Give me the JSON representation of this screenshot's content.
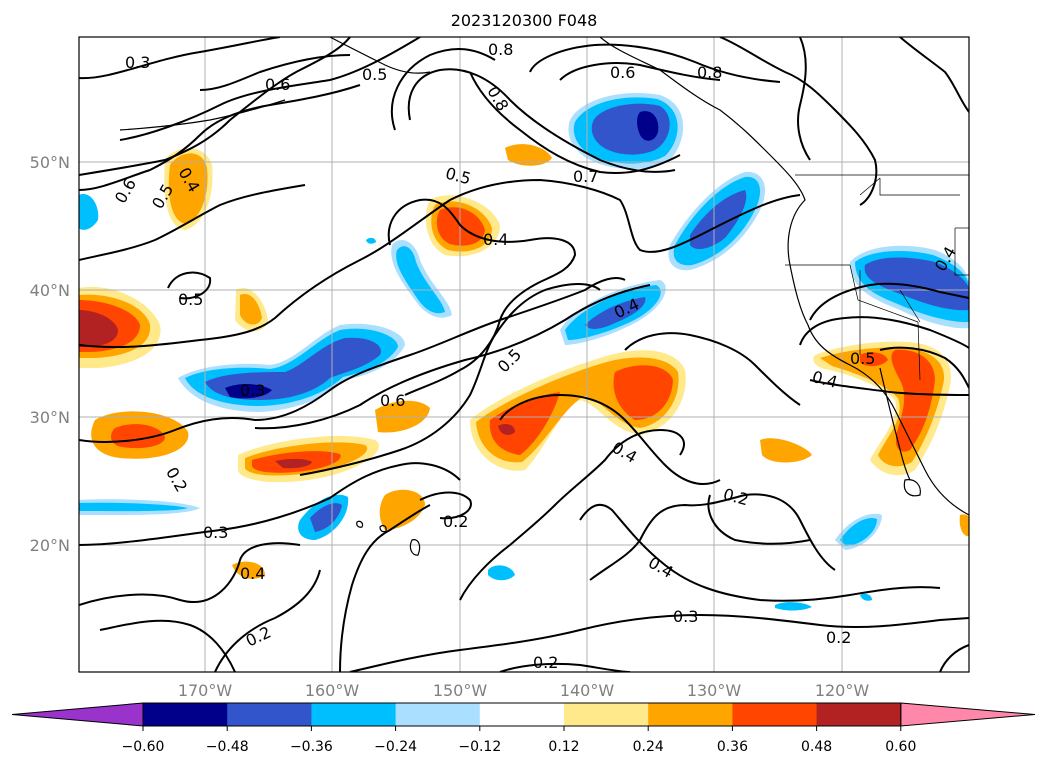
{
  "title": "2023120300 F048",
  "lat_labels": [
    "50°N",
    "40°N",
    "30°N",
    "20°N"
  ],
  "lon_labels": [
    "170°W",
    "160°W",
    "150°W",
    "140°W",
    "130°W",
    "120°W"
  ],
  "colorbar": {
    "ticks": [
      "−0.60",
      "−0.48",
      "−0.36",
      "−0.24",
      "−0.12",
      "0.12",
      "0.24",
      "0.36",
      "0.48",
      "0.60"
    ],
    "colors": [
      "#9933cc",
      "#00008b",
      "#3355cc",
      "#00bfff",
      "#aadfff",
      "#ffffff",
      "#ffe98a",
      "#ffa500",
      "#ff4500",
      "#b22222",
      "#ff88aa"
    ]
  },
  "contour_labels": [
    "0.3",
    "0.6",
    "0.5",
    "0.8",
    "0.6",
    "0.8",
    "0.8",
    "0.6",
    "0.5",
    "0.4",
    "0.5",
    "0.7",
    "0.4",
    "0.5",
    "0.4",
    "0.4",
    "0.5",
    "0.3",
    "0.6",
    "0.5",
    "0.4",
    "0.4",
    "0.2",
    "0.2",
    "0.3",
    "0.2",
    "0.4",
    "0.4",
    "0.3",
    "0.2",
    "0.2",
    "0.2"
  ]
}
